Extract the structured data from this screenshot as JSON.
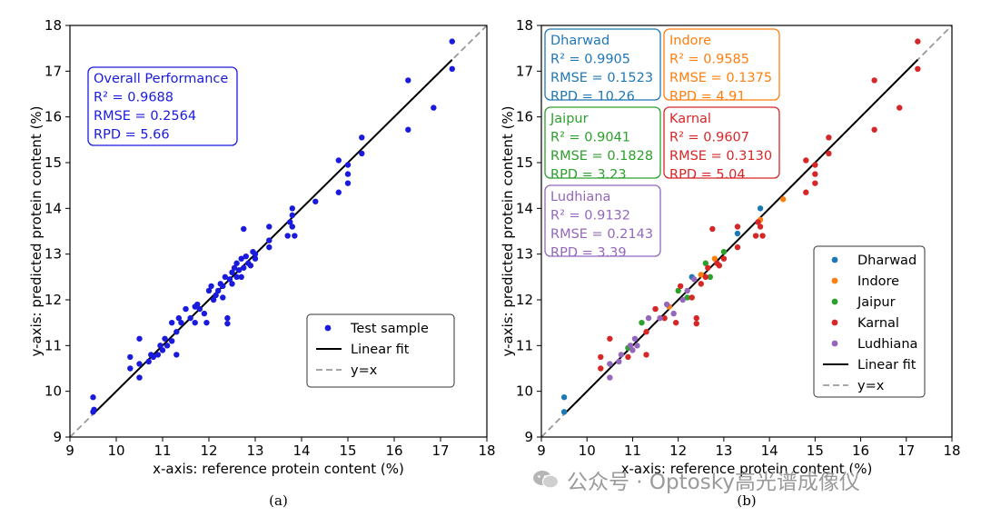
{
  "panels": [
    {
      "caption": "(a)",
      "xlabel": "x-axis: reference protein content (%)",
      "ylabel": "y-axis: predicted protein content (%)",
      "xlim": [
        9,
        18
      ],
      "ylim": [
        9,
        18
      ],
      "ticks": [
        9,
        10,
        11,
        12,
        13,
        14,
        15,
        16,
        17,
        18
      ],
      "stats_boxes": [
        {
          "title": "Overall Performance",
          "lines": [
            "R² = 0.9688",
            "RMSE = 0.2564",
            "RPD = 5.66"
          ],
          "color": "#1a1adc"
        }
      ],
      "legend": [
        {
          "label": "Test sample",
          "kind": "dot",
          "color": "#1a1adc"
        },
        {
          "label": "Linear fit",
          "kind": "line",
          "color": "#000000"
        },
        {
          "label": "y=x",
          "kind": "dash",
          "color": "#999999"
        }
      ]
    },
    {
      "caption": "(b)",
      "xlabel": "x-axis: reference protein content (%)",
      "ylabel": "y-axis: predicted protein content (%)",
      "xlim": [
        9,
        18
      ],
      "ylim": [
        9,
        18
      ],
      "ticks": [
        9,
        10,
        11,
        12,
        13,
        14,
        15,
        16,
        17,
        18
      ],
      "stats_boxes": [
        {
          "title": "Dharwad",
          "lines": [
            "R² = 0.9905",
            "RMSE = 0.1523",
            "RPD = 10.26"
          ],
          "color": "#1f77b4"
        },
        {
          "title": "Indore",
          "lines": [
            "R² = 0.9585",
            "RMSE = 0.1375",
            "RPD = 4.91"
          ],
          "color": "#ff7f0e"
        },
        {
          "title": "Jaipur",
          "lines": [
            "R² = 0.9041",
            "RMSE = 0.1828",
            "RPD = 3.23"
          ],
          "color": "#2ca02c"
        },
        {
          "title": "Karnal",
          "lines": [
            "R² = 0.9607",
            "RMSE = 0.3130",
            "RPD = 5.04"
          ],
          "color": "#d62728"
        },
        {
          "title": "Ludhiana",
          "lines": [
            "R² = 0.9132",
            "RMSE = 0.2143",
            "RPD = 3.39"
          ],
          "color": "#9467bd"
        }
      ],
      "legend": [
        {
          "label": "Dharwad",
          "kind": "dot",
          "color": "#1f77b4"
        },
        {
          "label": "Indore",
          "kind": "dot",
          "color": "#ff7f0e"
        },
        {
          "label": "Jaipur",
          "kind": "dot",
          "color": "#2ca02c"
        },
        {
          "label": "Karnal",
          "kind": "dot",
          "color": "#d62728"
        },
        {
          "label": "Ludhiana",
          "kind": "dot",
          "color": "#9467bd"
        },
        {
          "label": "Linear fit",
          "kind": "line",
          "color": "#000000"
        },
        {
          "label": "y=x",
          "kind": "dash",
          "color": "#999999"
        }
      ]
    }
  ],
  "watermark": "公众号 · Optosky高光谱成像仪",
  "chart_data": [
    {
      "type": "scatter",
      "title": "",
      "xlabel": "x-axis: reference protein content (%)",
      "ylabel": "y-axis: predicted protein content (%)",
      "xlim": [
        9,
        18
      ],
      "ylim": [
        9,
        18
      ],
      "grid": false,
      "legend_position": "bottom-right",
      "fit_line": {
        "slope": 1.0,
        "intercept": 0.0
      },
      "series": [
        {
          "name": "Test sample",
          "color": "#1a1adc",
          "points": [
            [
              9.5,
              9.87
            ],
            [
              9.5,
              9.55
            ],
            [
              9.52,
              9.6
            ],
            [
              10.3,
              10.5
            ],
            [
              10.3,
              10.75
            ],
            [
              10.5,
              10.6
            ],
            [
              10.5,
              10.3
            ],
            [
              10.5,
              11.15
            ],
            [
              10.7,
              10.65
            ],
            [
              10.75,
              10.8
            ],
            [
              10.8,
              10.75
            ],
            [
              10.9,
              10.8
            ],
            [
              10.95,
              11.0
            ],
            [
              11.0,
              10.9
            ],
            [
              11.05,
              11.15
            ],
            [
              11.1,
              11.0
            ],
            [
              11.2,
              11.1
            ],
            [
              11.2,
              11.5
            ],
            [
              11.3,
              11.3
            ],
            [
              11.3,
              10.8
            ],
            [
              11.35,
              11.6
            ],
            [
              11.4,
              11.5
            ],
            [
              11.5,
              11.8
            ],
            [
              11.6,
              11.6
            ],
            [
              11.7,
              11.5
            ],
            [
              11.7,
              11.85
            ],
            [
              11.75,
              11.9
            ],
            [
              11.8,
              11.8
            ],
            [
              11.9,
              11.7
            ],
            [
              11.95,
              11.5
            ],
            [
              12.0,
              12.2
            ],
            [
              12.05,
              12.3
            ],
            [
              12.1,
              12.0
            ],
            [
              12.15,
              12.1
            ],
            [
              12.2,
              12.2
            ],
            [
              12.25,
              12.35
            ],
            [
              12.3,
              12.3
            ],
            [
              12.3,
              12.05
            ],
            [
              12.35,
              12.5
            ],
            [
              12.4,
              11.6
            ],
            [
              12.4,
              11.48
            ],
            [
              12.45,
              12.45
            ],
            [
              12.5,
              12.6
            ],
            [
              12.5,
              12.35
            ],
            [
              12.55,
              12.7
            ],
            [
              12.6,
              12.5
            ],
            [
              12.6,
              12.8
            ],
            [
              12.65,
              12.65
            ],
            [
              12.7,
              12.9
            ],
            [
              12.7,
              12.5
            ],
            [
              12.75,
              13.55
            ],
            [
              12.75,
              12.7
            ],
            [
              12.8,
              12.95
            ],
            [
              12.85,
              12.8
            ],
            [
              12.9,
              12.75
            ],
            [
              12.95,
              13.05
            ],
            [
              13.0,
              12.9
            ],
            [
              13.0,
              13.0
            ],
            [
              13.3,
              13.6
            ],
            [
              13.3,
              13.3
            ],
            [
              13.3,
              13.15
            ],
            [
              13.7,
              13.4
            ],
            [
              13.75,
              13.7
            ],
            [
              13.8,
              14.0
            ],
            [
              13.8,
              13.85
            ],
            [
              13.85,
              13.4
            ],
            [
              13.8,
              13.6
            ],
            [
              14.3,
              14.15
            ],
            [
              14.8,
              15.05
            ],
            [
              14.8,
              14.35
            ],
            [
              15.0,
              14.95
            ],
            [
              15.0,
              14.75
            ],
            [
              15.0,
              14.55
            ],
            [
              15.3,
              15.2
            ],
            [
              15.3,
              15.55
            ],
            [
              16.3,
              16.8
            ],
            [
              16.3,
              15.72
            ],
            [
              16.85,
              16.2
            ],
            [
              17.25,
              17.65
            ],
            [
              17.25,
              17.05
            ]
          ]
        }
      ]
    },
    {
      "type": "scatter",
      "title": "",
      "xlabel": "x-axis: reference protein content (%)",
      "ylabel": "y-axis: predicted protein content (%)",
      "xlim": [
        9,
        18
      ],
      "ylim": [
        9,
        18
      ],
      "grid": false,
      "legend_position": "bottom-right",
      "fit_line": {
        "slope": 1.0,
        "intercept": 0.0
      },
      "series": [
        {
          "name": "Dharwad",
          "color": "#1f77b4",
          "points": [
            [
              9.5,
              9.87
            ],
            [
              9.5,
              9.55
            ],
            [
              12.3,
              12.5
            ],
            [
              13.3,
              13.45
            ],
            [
              13.8,
              14.0
            ]
          ]
        },
        {
          "name": "Indore",
          "color": "#ff7f0e",
          "points": [
            [
              11.8,
              11.85
            ],
            [
              12.5,
              12.55
            ],
            [
              12.8,
              12.9
            ],
            [
              13.8,
              13.75
            ],
            [
              14.3,
              14.2
            ]
          ]
        },
        {
          "name": "Jaipur",
          "color": "#2ca02c",
          "points": [
            [
              10.9,
              10.95
            ],
            [
              11.2,
              11.5
            ],
            [
              12.0,
              12.2
            ],
            [
              12.2,
              12.05
            ],
            [
              12.6,
              12.8
            ],
            [
              12.7,
              12.5
            ],
            [
              13.0,
              13.05
            ]
          ]
        },
        {
          "name": "Karnal",
          "color": "#d62728",
          "points": [
            [
              10.3,
              10.5
            ],
            [
              10.3,
              10.75
            ],
            [
              10.5,
              11.15
            ],
            [
              10.9,
              10.75
            ],
            [
              11.3,
              10.8
            ],
            [
              11.3,
              11.3
            ],
            [
              11.5,
              11.8
            ],
            [
              11.7,
              11.6
            ],
            [
              11.95,
              11.5
            ],
            [
              12.05,
              12.3
            ],
            [
              12.3,
              12.05
            ],
            [
              12.4,
              11.6
            ],
            [
              12.4,
              11.48
            ],
            [
              12.5,
              12.35
            ],
            [
              12.6,
              12.5
            ],
            [
              12.65,
              12.7
            ],
            [
              12.75,
              13.55
            ],
            [
              12.85,
              12.8
            ],
            [
              12.9,
              12.75
            ],
            [
              13.0,
              12.9
            ],
            [
              13.3,
              13.6
            ],
            [
              13.3,
              13.15
            ],
            [
              13.7,
              13.4
            ],
            [
              13.75,
              13.7
            ],
            [
              13.85,
              13.4
            ],
            [
              13.8,
              13.6
            ],
            [
              14.8,
              15.05
            ],
            [
              14.8,
              14.35
            ],
            [
              15.0,
              14.95
            ],
            [
              15.0,
              14.75
            ],
            [
              15.0,
              14.55
            ],
            [
              15.3,
              15.2
            ],
            [
              15.3,
              15.55
            ],
            [
              16.3,
              16.8
            ],
            [
              16.3,
              15.72
            ],
            [
              16.85,
              16.2
            ],
            [
              17.25,
              17.65
            ],
            [
              17.25,
              17.05
            ]
          ]
        },
        {
          "name": "Ludhiana",
          "color": "#9467bd",
          "points": [
            [
              10.5,
              10.6
            ],
            [
              10.5,
              10.3
            ],
            [
              10.7,
              10.65
            ],
            [
              10.75,
              10.8
            ],
            [
              10.95,
              11.0
            ],
            [
              11.0,
              10.9
            ],
            [
              11.05,
              11.15
            ],
            [
              11.1,
              11.0
            ],
            [
              11.35,
              11.6
            ],
            [
              11.6,
              11.6
            ],
            [
              11.75,
              11.9
            ],
            [
              11.9,
              11.7
            ],
            [
              12.1,
              12.0
            ],
            [
              12.2,
              12.2
            ],
            [
              12.35,
              12.45
            ]
          ]
        }
      ]
    }
  ]
}
